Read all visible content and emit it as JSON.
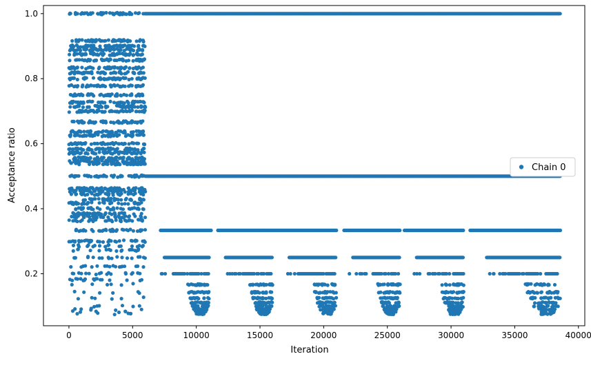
{
  "chart_data": {
    "type": "scatter",
    "xlabel": "Iteration",
    "ylabel": "Acceptance ratio",
    "xlim": [
      -2000,
      40500
    ],
    "ylim": [
      0.04,
      1.025
    ],
    "x_ticks": [
      0,
      5000,
      10000,
      15000,
      20000,
      25000,
      30000,
      35000,
      40000
    ],
    "y_ticks": [
      0.2,
      0.4,
      0.6,
      0.8,
      1.0
    ],
    "x_tick_labels": [
      "0",
      "5000",
      "10000",
      "15000",
      "20000",
      "25000",
      "30000",
      "35000",
      "40000"
    ],
    "y_tick_labels": [
      "0.2",
      "0.4",
      "0.6",
      "0.8",
      "1.0"
    ],
    "grid": false,
    "legend_position": "center-right",
    "x_max_iteration": 38600,
    "series": [
      {
        "name": "Chain 0",
        "color": "#1f77b4",
        "marker": "circle",
        "segments": [
          {
            "x_range": [
              0,
              6000
            ],
            "levels": [
              1.0,
              0.9167,
              0.9,
              0.8889,
              0.875,
              0.8571,
              0.8333,
              0.8182,
              0.8,
              0.7778,
              0.75,
              0.7273,
              0.7143,
              0.7,
              0.6667,
              0.6364,
              0.625,
              0.6,
              0.5833,
              0.5714,
              0.5556,
              0.5455,
              0.5385,
              0.5,
              0.4615,
              0.4545,
              0.4444,
              0.4286,
              0.4167,
              0.4,
              0.3846,
              0.375,
              0.3636,
              0.3333,
              0.3,
              0.2857,
              0.2727,
              0.25,
              0.2222,
              0.2,
              0.1818,
              0.1667,
              0.1429,
              0.125,
              0.1,
              0.0909,
              0.0833,
              0.0769
            ],
            "density": "dense"
          },
          {
            "x_range": [
              6000,
              38600
            ],
            "levels": [
              1.0,
              0.5
            ],
            "density": "continuous"
          },
          {
            "x_range": [
              7200,
              38600
            ],
            "levels": [
              0.3333
            ],
            "density": "dense"
          },
          {
            "x_range": [
              7300,
              38600
            ],
            "levels": [
              0.25
            ],
            "density": "dense"
          },
          {
            "x_range": [
              7500,
              38600
            ],
            "levels": [
              0.2
            ],
            "density": "medium"
          },
          {
            "x_range": [
              8000,
              38500
            ],
            "levels": [
              0.1667,
              0.1429,
              0.125,
              0.1111,
              0.1,
              0.0909,
              0.0833,
              0.0769
            ],
            "density": "clustered"
          }
        ]
      }
    ]
  }
}
